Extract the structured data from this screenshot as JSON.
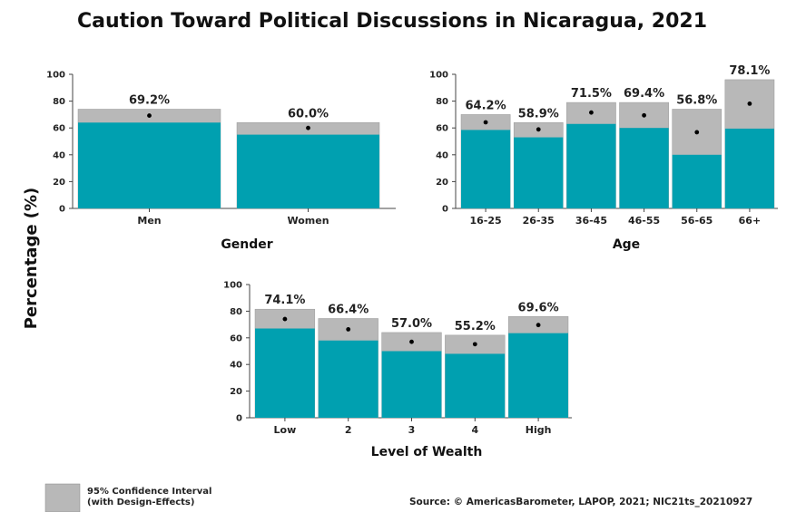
{
  "title": "Caution Toward Political Discussions in Nicaragua, 2021",
  "y_axis_label": "Percentage (%)",
  "legend": {
    "label_line1": "95% Confidence Interval",
    "label_line2": "(with Design-Effects)"
  },
  "source": "Source: © AmericasBarometer, LAPOP, 2021; NIC21ts_20210927",
  "colors": {
    "bar": "#00a0b0",
    "ci": "#b8b8b8",
    "point": "#000000"
  },
  "chart_data": [
    {
      "type": "bar",
      "xlabel": "Gender",
      "ylim": [
        0,
        100
      ],
      "yticks": [
        0,
        20,
        40,
        60,
        80,
        100
      ],
      "categories": [
        "Men",
        "Women"
      ],
      "values": [
        69.2,
        60.0
      ],
      "value_labels": [
        "69.2%",
        "60.0%"
      ],
      "ci_lower": [
        64,
        55
      ],
      "ci_upper": [
        74,
        64
      ]
    },
    {
      "type": "bar",
      "xlabel": "Age",
      "ylim": [
        0,
        100
      ],
      "yticks": [
        0,
        20,
        40,
        60,
        80,
        100
      ],
      "categories": [
        "16-25",
        "26-35",
        "36-45",
        "46-55",
        "56-65",
        "66+"
      ],
      "values": [
        64.2,
        58.9,
        71.5,
        69.4,
        56.8,
        78.1
      ],
      "value_labels": [
        "64.2%",
        "58.9%",
        "71.5%",
        "69.4%",
        "56.8%",
        "78.1%"
      ],
      "ci_lower": [
        58.5,
        53,
        63,
        60,
        40,
        59.5
      ],
      "ci_upper": [
        70,
        64,
        79,
        79,
        74,
        96
      ]
    },
    {
      "type": "bar",
      "xlabel": "Level of Wealth",
      "ylim": [
        0,
        100
      ],
      "yticks": [
        0,
        20,
        40,
        60,
        80,
        100
      ],
      "categories": [
        "Low",
        "2",
        "3",
        "4",
        "High"
      ],
      "values": [
        74.1,
        66.4,
        57.0,
        55.2,
        69.6
      ],
      "value_labels": [
        "74.1%",
        "66.4%",
        "57.0%",
        "55.2%",
        "69.6%"
      ],
      "ci_lower": [
        67,
        58,
        50,
        48,
        63.5
      ],
      "ci_upper": [
        81.5,
        74.5,
        64,
        62,
        76
      ]
    }
  ]
}
